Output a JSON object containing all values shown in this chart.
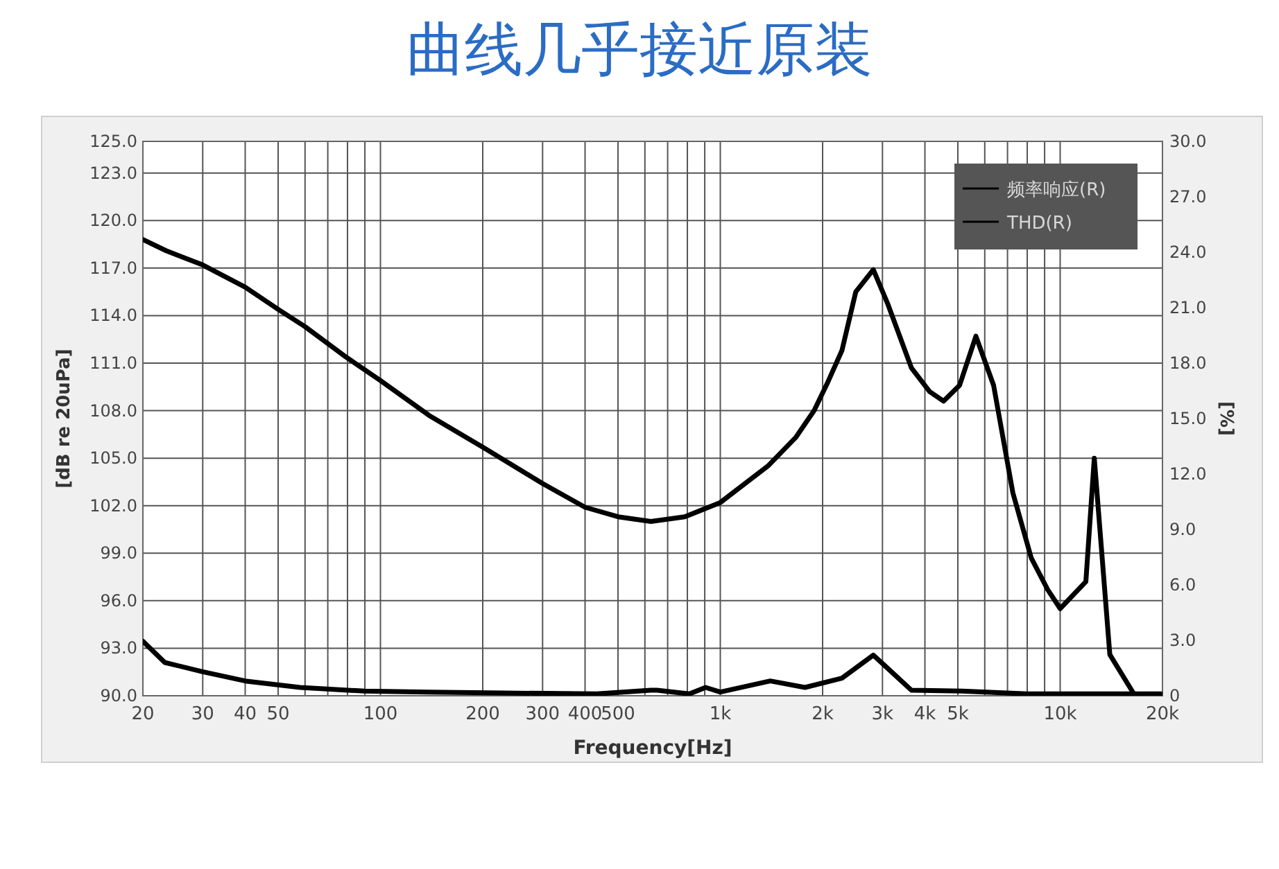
{
  "chart_data": {
    "type": "line",
    "title": "曲线几乎接近原装",
    "xlabel": "Frequency[Hz]",
    "ylabel": "[dB re 20uPa]",
    "y2label": "[%]",
    "log": "x",
    "grid": true,
    "legend": "top right",
    "line_style": "solid",
    "xlim": [
      20,
      20000
    ],
    "ylim": [
      90,
      125
    ],
    "y2lim": [
      0,
      30
    ],
    "xticks": [
      {
        "value": 20,
        "label": "20"
      },
      {
        "value": 30,
        "label": "30"
      },
      {
        "value": 40,
        "label": "40"
      },
      {
        "value": 50,
        "label": "50"
      },
      {
        "value": 60,
        "label": null
      },
      {
        "value": 70,
        "label": null
      },
      {
        "value": 80,
        "label": null
      },
      {
        "value": 90,
        "label": null
      },
      {
        "value": 100,
        "label": "100"
      },
      {
        "value": 200,
        "label": "200"
      },
      {
        "value": 300,
        "label": "300"
      },
      {
        "value": 400,
        "label": "400"
      },
      {
        "value": 500,
        "label": "500"
      },
      {
        "value": 600,
        "label": null
      },
      {
        "value": 700,
        "label": null
      },
      {
        "value": 800,
        "label": null
      },
      {
        "value": 900,
        "label": null
      },
      {
        "value": 1000,
        "label": "1k"
      },
      {
        "value": 2000,
        "label": "2k"
      },
      {
        "value": 3000,
        "label": "3k"
      },
      {
        "value": 4000,
        "label": "4k"
      },
      {
        "value": 5000,
        "label": "5k"
      },
      {
        "value": 6000,
        "label": null
      },
      {
        "value": 7000,
        "label": null
      },
      {
        "value": 8000,
        "label": null
      },
      {
        "value": 9000,
        "label": null
      },
      {
        "value": 10000,
        "label": "10k"
      },
      {
        "value": 20000,
        "label": "20k"
      }
    ],
    "yticks": [
      {
        "value": 90,
        "label": "90.0"
      },
      {
        "value": 93,
        "label": "93.0"
      },
      {
        "value": 96,
        "label": "96.0"
      },
      {
        "value": 99,
        "label": "99.0"
      },
      {
        "value": 102,
        "label": "102.0"
      },
      {
        "value": 105,
        "label": "105.0"
      },
      {
        "value": 108,
        "label": "108.0"
      },
      {
        "value": 111,
        "label": "111.0"
      },
      {
        "value": 114,
        "label": "114.0"
      },
      {
        "value": 117,
        "label": "117.0"
      },
      {
        "value": 120,
        "label": "120.0"
      },
      {
        "value": 123,
        "label": "123.0"
      },
      {
        "value": 125,
        "label": "125.0"
      }
    ],
    "y2ticks": [
      0,
      {
        "value": 3,
        "label": "3.0"
      },
      {
        "value": 6,
        "label": "6.0"
      },
      {
        "value": 9,
        "label": "9.0"
      },
      {
        "value": 12,
        "label": "12.0"
      },
      {
        "value": 15,
        "label": "15.0"
      },
      {
        "value": 18,
        "label": "18.0"
      },
      {
        "value": 21,
        "label": "21.0"
      },
      {
        "value": 24,
        "label": "24.0"
      },
      {
        "value": 27,
        "label": "27.0"
      },
      {
        "value": 30,
        "label": "30.0"
      }
    ],
    "series": [
      {
        "name": "频率响应(R)",
        "color": "#000000",
        "x": [
          20,
          23.4,
          30,
          40,
          50,
          60,
          79,
          100,
          139,
          200,
          300,
          400,
          500,
          625,
          786,
          1000,
          1380,
          1666,
          1888,
          2072,
          2280,
          2504,
          2820,
          3115,
          3650,
          4130,
          4540,
          5060,
          5650,
          6370,
          7260,
          8220,
          9190,
          10000,
          11900,
          12600,
          14000,
          16500
        ],
        "values": [
          118.8,
          118.1,
          117.2,
          115.8,
          114.4,
          113.3,
          111.4,
          109.9,
          107.7,
          105.7,
          103.4,
          101.9,
          101.3,
          101.0,
          101.3,
          102.2,
          104.5,
          106.3,
          108.0,
          109.8,
          111.8,
          115.5,
          116.9,
          114.7,
          110.7,
          109.2,
          108.6,
          109.6,
          112.7,
          109.6,
          102.8,
          98.7,
          96.7,
          95.5,
          97.2,
          105.0,
          92.6,
          90.1
        ]
      },
      {
        "name": "THD(R)",
        "color": "#000000",
        "axis": "y2",
        "x": [
          20,
          23.2,
          30,
          40,
          58,
          90,
          139,
          230,
          433,
          625,
          651,
          811,
          905,
          1000,
          1403,
          1775,
          2280,
          2820,
          3650,
          5150,
          8000,
          19800
        ],
        "values": [
          2.95,
          1.8,
          1.3,
          0.8,
          0.45,
          0.25,
          0.2,
          0.15,
          0.1,
          0.3,
          0.3,
          0.1,
          0.45,
          0.2,
          0.8,
          0.45,
          0.95,
          2.2,
          0.3,
          0.25,
          0.1,
          0.1
        ]
      }
    ]
  }
}
